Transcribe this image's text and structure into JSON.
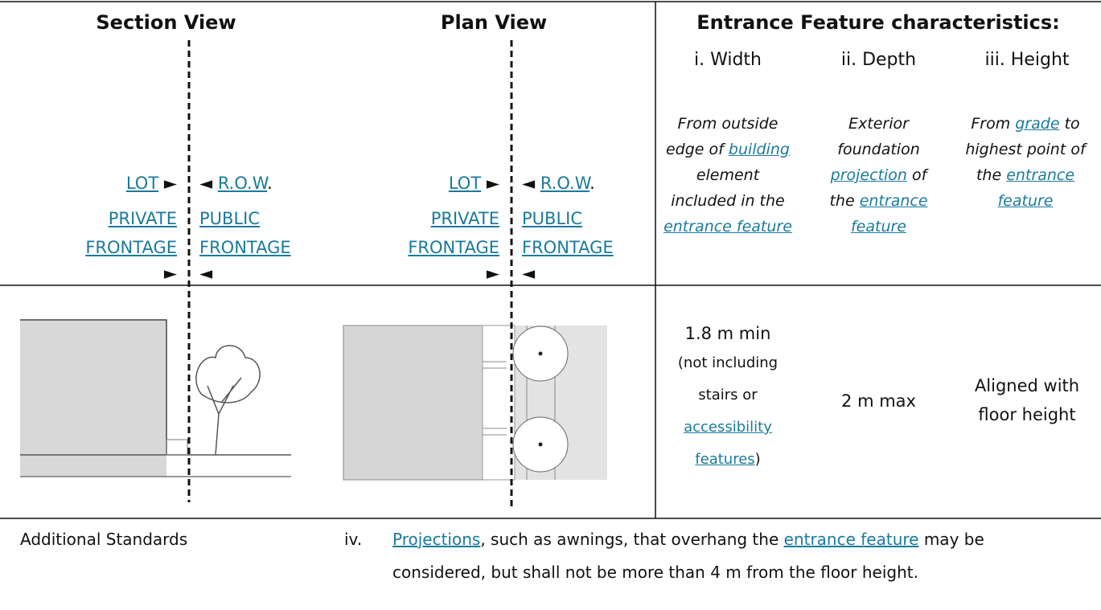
{
  "section_view": {
    "title": "Section View",
    "lot": [
      {
        "text": "LOT",
        "link": true
      },
      {
        "text": " ►"
      }
    ],
    "row": [
      {
        "text": "◄ "
      },
      {
        "text": "R.O.W",
        "link": true
      },
      {
        "text": "."
      }
    ],
    "private_frontage": [
      {
        "text": "PRIVATE FRONTAGE",
        "link": true
      }
    ],
    "private_arrow": "►",
    "public_frontage": [
      {
        "text": "PUBLIC FRONTAGE",
        "link": true
      }
    ],
    "public_arrow": "◄"
  },
  "plan_view": {
    "title": "Plan View",
    "lot": [
      {
        "text": "LOT",
        "link": true
      },
      {
        "text": " ►"
      }
    ],
    "row": [
      {
        "text": "◄ "
      },
      {
        "text": "R.O.W",
        "link": true
      },
      {
        "text": "."
      }
    ],
    "private_frontage": [
      {
        "text": "PRIVATE FRONTAGE",
        "link": true
      }
    ],
    "private_arrow": "►",
    "public_frontage": [
      {
        "text": "PUBLIC FRONTAGE",
        "link": true
      }
    ],
    "public_arrow": "◄"
  },
  "characteristics": {
    "title": "Entrance Feature characteristics:",
    "columns": [
      {
        "heading": "i.  Width",
        "description": [
          {
            "text": "From outside edge of "
          },
          {
            "text": "building",
            "link": true
          },
          {
            "text": " element included in the "
          },
          {
            "text": "entrance feature",
            "link": true
          }
        ],
        "value": "1.8 m min",
        "note": [
          {
            "text": "(not including stairs or "
          },
          {
            "text": "accessibility features",
            "link": true
          },
          {
            "text": ")"
          }
        ]
      },
      {
        "heading": "ii.  Depth",
        "description": [
          {
            "text": "Exterior foundation "
          },
          {
            "text": "projection",
            "link": true
          },
          {
            "text": " of the "
          },
          {
            "text": "entrance feature",
            "link": true
          }
        ],
        "value": "2 m max"
      },
      {
        "heading": "iii.  Height",
        "description": [
          {
            "text": "From "
          },
          {
            "text": "grade",
            "link": true
          },
          {
            "text": " to highest point of the "
          },
          {
            "text": "entrance feature",
            "link": true
          }
        ],
        "value": "Aligned with floor height"
      }
    ]
  },
  "additional_standards": {
    "label": "Additional Standards",
    "items": [
      {
        "marker": "iv.",
        "text": [
          {
            "text": "Projections",
            "link": true
          },
          {
            "text": ", such as awnings, that overhang the "
          },
          {
            "text": "entrance feature",
            "link": true
          },
          {
            "text": " may be considered, but shall not be more than 4 m from the floor height."
          }
        ]
      }
    ]
  }
}
